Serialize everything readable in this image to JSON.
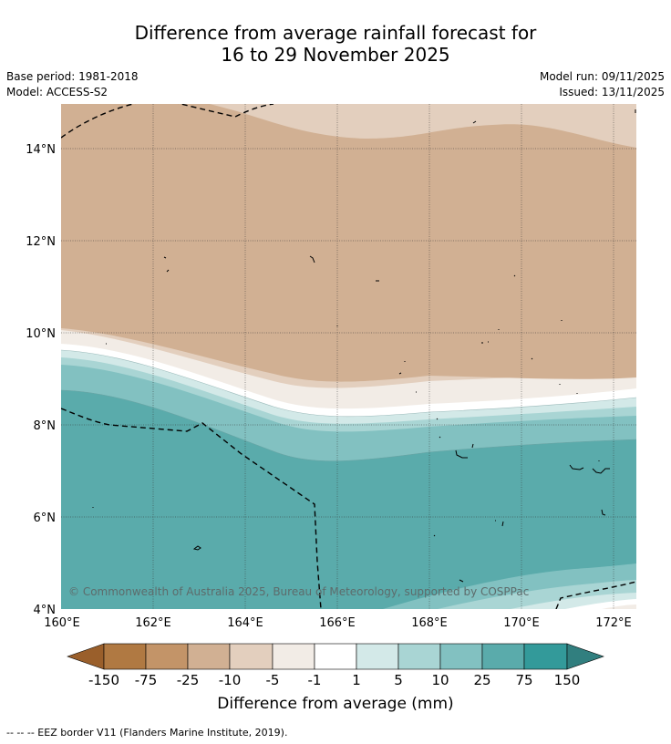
{
  "title_line1": "Difference from average rainfall forecast for",
  "title_line2": "16 to 29 November 2025",
  "base_period": "Base period: 1981-2018",
  "model": "Model: ACCESS-S2",
  "model_run": "Model run: 09/11/2025",
  "issued": "Issued: 13/11/2025",
  "copyright": "© Commonwealth of Australia 2025, Bureau of Meteorology, supported by COSPPac",
  "map": {
    "lon_labels": [
      "160°E",
      "162°E",
      "164°E",
      "166°E",
      "168°E",
      "170°E",
      "172°E"
    ],
    "lat_labels": [
      "4°N",
      "6°N",
      "8°N",
      "10°N",
      "12°N",
      "14°N"
    ]
  },
  "colorbar": {
    "ticks": [
      "-150",
      "-75",
      "-25",
      "-10",
      "-5",
      "-1",
      "1",
      "5",
      "10",
      "25",
      "75",
      "150"
    ],
    "colors": {
      "lt_neg150": "#9a5f2b",
      "neg150_neg75": "#b07942",
      "neg75_neg25": "#c39468",
      "neg25_neg10": "#d1b093",
      "neg10_neg5": "#e3cfbe",
      "neg5_neg1": "#f2ece6",
      "neg1_1": "#ffffff",
      "1_5": "#d3e9e8",
      "5_10": "#a9d5d4",
      "10_25": "#82c1c1",
      "25_75": "#5aabab",
      "75_150": "#339a9a",
      "gt150": "#317f7f"
    },
    "title": "Difference from average (mm)"
  },
  "legend_note": "--  --  -- EEZ border V11 (Flanders Marine Institute, 2019)."
}
